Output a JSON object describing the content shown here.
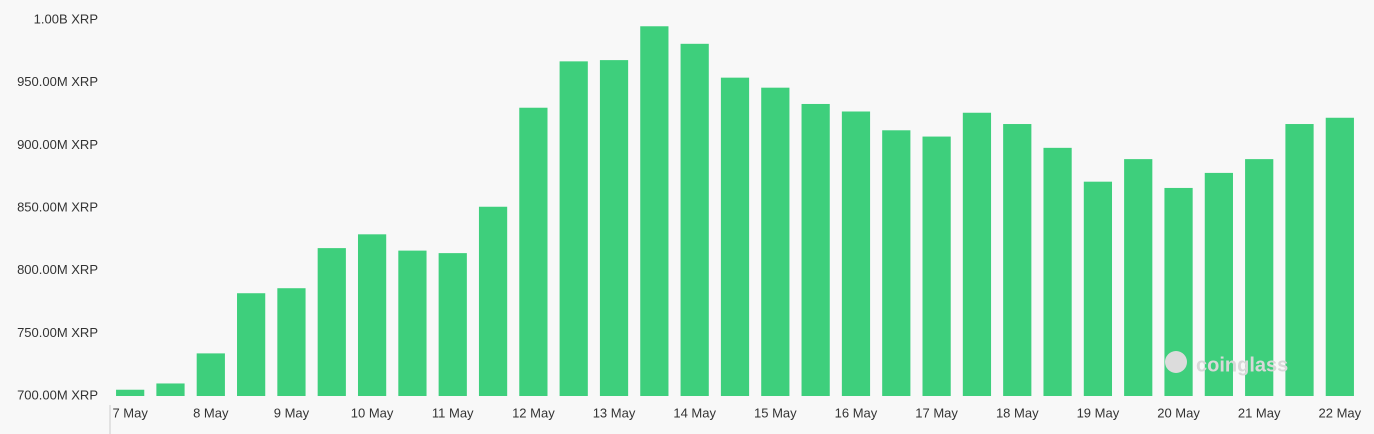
{
  "chart_data": {
    "type": "bar",
    "categories": [
      "7 May",
      null,
      "8 May",
      null,
      "9 May",
      null,
      "10 May",
      null,
      "11 May",
      null,
      "12 May",
      null,
      "13 May",
      null,
      "14 May",
      null,
      "15 May",
      null,
      "16 May",
      null,
      "17 May",
      null,
      "18 May",
      null,
      "19 May",
      null,
      "20 May",
      null,
      "21 May",
      null,
      "22 May"
    ],
    "values": [
      705,
      710,
      734,
      782,
      786,
      818,
      829,
      816,
      814,
      851,
      930,
      967,
      968,
      995,
      981,
      954,
      946,
      933,
      927,
      912,
      907,
      926,
      917,
      898,
      871,
      889,
      866,
      878,
      889,
      917,
      922
    ],
    "color": "#3ecf7c",
    "ylim": [
      700,
      1000
    ],
    "yticks": [
      {
        "value": 700,
        "label": "700.00M XRP"
      },
      {
        "value": 750,
        "label": "750.00M XRP"
      },
      {
        "value": 800,
        "label": "800.00M XRP"
      },
      {
        "value": 850,
        "label": "850.00M XRP"
      },
      {
        "value": 900,
        "label": "900.00M XRP"
      },
      {
        "value": 950,
        "label": "950.00M XRP"
      },
      {
        "value": 1000,
        "label": "1.00B XRP"
      }
    ],
    "grid": false,
    "watermark": "coinglass"
  }
}
